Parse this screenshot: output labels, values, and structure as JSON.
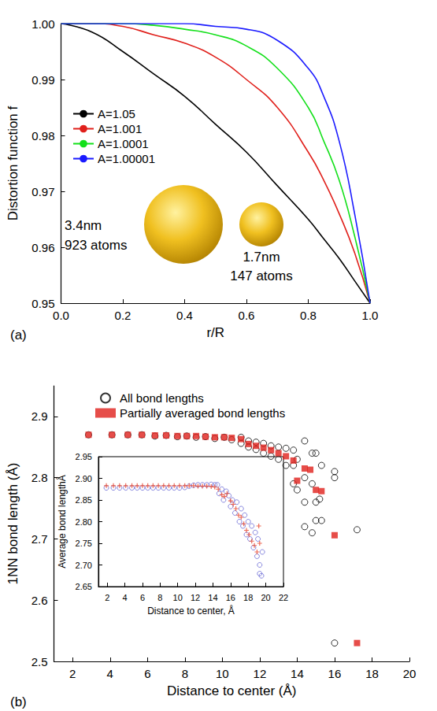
{
  "chart_data": [
    {
      "type": "line",
      "title": "(a)",
      "x_label": "r/R",
      "y_label": "Distortion function f",
      "x": [
        0,
        0.1,
        0.2,
        0.3,
        0.4,
        0.5,
        0.6,
        0.7,
        0.8,
        0.85,
        0.9,
        0.95,
        1.0
      ],
      "series": [
        {
          "name": "A=1.05",
          "color": "#000000",
          "line_style": "solid",
          "values": [
            1.0,
            0.9985,
            0.995,
            0.991,
            0.987,
            0.982,
            0.977,
            0.971,
            0.965,
            0.9615,
            0.958,
            0.954,
            0.95
          ]
        },
        {
          "name": "A=1.001",
          "color": "#e0201b",
          "line_style": "solid",
          "values": [
            1.0,
            1.0,
            0.9995,
            0.998,
            0.9965,
            0.994,
            0.99,
            0.985,
            0.977,
            0.972,
            0.966,
            0.959,
            0.95
          ]
        },
        {
          "name": "A=1.0001",
          "color": "#14e01b",
          "line_style": "solid",
          "values": [
            1.0,
            1.0,
            1.0,
            0.9997,
            0.999,
            0.998,
            0.996,
            0.992,
            0.985,
            0.979,
            0.972,
            0.962,
            0.95
          ]
        },
        {
          "name": "A=1.00001",
          "color": "#1a1aff",
          "line_style": "solid",
          "values": [
            1.0,
            1.0,
            1.0,
            1.0,
            1.0,
            0.9995,
            0.999,
            0.997,
            0.992,
            0.987,
            0.979,
            0.966,
            0.95
          ]
        }
      ],
      "xlim": [
        0,
        1
      ],
      "xticks": [
        {
          "value": 0,
          "label": "0.0"
        },
        0.2,
        0.4,
        0.6,
        0.8,
        {
          "value": 1,
          "label": "1.0"
        }
      ],
      "ylim": [
        0.95,
        1
      ],
      "yticks": [
        0.95,
        0.96,
        0.97,
        0.98,
        0.99,
        {
          "value": 1,
          "label": "1.00"
        }
      ],
      "legend": "upper left",
      "grid": false,
      "annotations": [
        "3.4nm",
        "923 atoms",
        "1.7nm",
        "147 atoms"
      ]
    },
    {
      "type": "scatter",
      "title": "(b)",
      "x_label": "Distance to center (Å)",
      "y_label": "1NN bond length (Å)",
      "series": [
        {
          "name": "All bond lengths",
          "color": "#000000",
          "marker": "open_circle",
          "x": [
            2.85,
            4.1,
            4.95,
            5.7,
            6.4,
            7.0,
            7.6,
            8.1,
            8.6,
            9.1,
            9.6,
            10.1,
            10.5,
            11.0,
            11.0,
            11.4,
            11.4,
            11.8,
            11.8,
            12.2,
            12.2,
            12.6,
            12.6,
            13.0,
            13.0,
            13.4,
            13.4,
            13.8,
            13.8,
            13.8,
            14.0,
            14.0,
            14.4,
            14.4,
            14.4,
            14.4,
            14.8,
            14.8,
            14.8,
            15.0,
            15.0,
            15.0,
            15.3,
            15.3,
            15.2,
            16.0,
            16.0,
            16.0,
            17.2
          ],
          "values": [
            2.87,
            2.87,
            2.87,
            2.87,
            2.868,
            2.869,
            2.867,
            2.868,
            2.866,
            2.867,
            2.864,
            2.866,
            2.862,
            2.856,
            2.866,
            2.86,
            2.85,
            2.858,
            2.846,
            2.856,
            2.84,
            2.852,
            2.835,
            2.85,
            2.83,
            2.848,
            2.82,
            2.845,
            2.82,
            2.79,
            2.83,
            2.78,
            2.86,
            2.8,
            2.76,
            2.72,
            2.84,
            2.79,
            2.71,
            2.84,
            2.76,
            2.73,
            2.82,
            2.73,
            2.765,
            2.81,
            2.8,
            2.53,
            2.715
          ]
        },
        {
          "name": "Partially averaged bond lengths",
          "color": "#e0201b",
          "marker": "square",
          "x": [
            2.85,
            4.1,
            4.95,
            5.7,
            6.4,
            7.0,
            7.6,
            8.1,
            8.6,
            9.1,
            9.6,
            10.1,
            10.5,
            11.0,
            11.4,
            11.8,
            12.2,
            12.6,
            13.0,
            13.4,
            13.8,
            14.0,
            14.4,
            14.7,
            15.0,
            15.3,
            16.0,
            17.2
          ],
          "values": [
            2.87,
            2.87,
            2.87,
            2.87,
            2.869,
            2.869,
            2.868,
            2.868,
            2.868,
            2.867,
            2.866,
            2.866,
            2.865,
            2.863,
            2.855,
            2.852,
            2.849,
            2.845,
            2.84,
            2.835,
            2.828,
            2.795,
            2.815,
            2.813,
            2.78,
            2.778,
            2.706,
            2.53
          ]
        }
      ],
      "xlim": [
        1,
        20
      ],
      "xticks": [
        2,
        4,
        6,
        8,
        10,
        12,
        14,
        16,
        18,
        20
      ],
      "ylim": [
        2.5,
        2.95
      ],
      "yticks": [
        2.5,
        2.6,
        2.7,
        2.8,
        2.9
      ],
      "legend": "upper left",
      "grid": false
    },
    {
      "type": "scatter",
      "x_label": "Distance to center, Å",
      "y_label": "Average bond lengthÅ",
      "series": [
        {
          "color": "#6b6bd6",
          "marker": "open_circle",
          "x": [
            1.9,
            2.7,
            3.4,
            4.1,
            4.8,
            5.4,
            6.0,
            6.6,
            7.2,
            7.8,
            8.4,
            9.0,
            9.6,
            10.2,
            10.8,
            11.3,
            11.8,
            12.3,
            12.8,
            13.3,
            13.8,
            14.2,
            14.5,
            14.7,
            15.0,
            15.2,
            15.5,
            15.8,
            16.0,
            16.2,
            16.5,
            16.7,
            17.0,
            17.2,
            17.4,
            17.6,
            17.8,
            18.0,
            18.2,
            18.4,
            18.6,
            18.8,
            19.0,
            19.1,
            19.3,
            19.3,
            19.5,
            19.6
          ],
          "values": [
            2.878,
            2.878,
            2.878,
            2.878,
            2.878,
            2.878,
            2.878,
            2.878,
            2.878,
            2.878,
            2.878,
            2.878,
            2.878,
            2.878,
            2.879,
            2.882,
            2.884,
            2.885,
            2.885,
            2.885,
            2.886,
            2.885,
            2.885,
            2.865,
            2.875,
            2.85,
            2.87,
            2.86,
            2.835,
            2.85,
            2.82,
            2.845,
            2.8,
            2.83,
            2.79,
            2.815,
            2.77,
            2.8,
            2.76,
            2.79,
            2.74,
            2.775,
            2.72,
            2.76,
            2.7,
            2.68,
            2.675,
            2.73
          ]
        },
        {
          "color": "#e8442a",
          "marker": "plus",
          "x": [
            1.9,
            2.7,
            3.4,
            4.1,
            4.8,
            5.4,
            6.0,
            6.6,
            7.2,
            7.8,
            8.4,
            9.0,
            9.6,
            10.2,
            10.8,
            11.3,
            11.8,
            12.3,
            12.8,
            13.3,
            13.8,
            14.2,
            14.6,
            15.0,
            15.3,
            15.6,
            16.0,
            16.3,
            16.6,
            16.9,
            17.2,
            17.5,
            17.8,
            18.1,
            18.4,
            18.7,
            19.0,
            19.2,
            19.3
          ],
          "values": [
            2.883,
            2.883,
            2.883,
            2.883,
            2.883,
            2.883,
            2.883,
            2.883,
            2.883,
            2.883,
            2.883,
            2.883,
            2.883,
            2.883,
            2.883,
            2.883,
            2.883,
            2.882,
            2.882,
            2.882,
            2.881,
            2.88,
            2.875,
            2.862,
            2.858,
            2.865,
            2.848,
            2.84,
            2.83,
            2.815,
            2.81,
            2.795,
            2.78,
            2.77,
            2.755,
            2.745,
            2.73,
            2.79,
            2.75
          ]
        }
      ],
      "xlim": [
        1,
        22
      ],
      "xticks": [
        2,
        4,
        6,
        8,
        10,
        12,
        14,
        16,
        18,
        20,
        22
      ],
      "ylim": [
        2.65,
        2.95
      ],
      "yticks": [
        2.65,
        {
          "value": 2.7,
          "label": "2.70"
        },
        2.75,
        {
          "value": 2.8,
          "label": "2.80"
        },
        2.85,
        {
          "value": 2.9,
          "label": "2.90"
        },
        2.95
      ],
      "grid": false
    }
  ]
}
